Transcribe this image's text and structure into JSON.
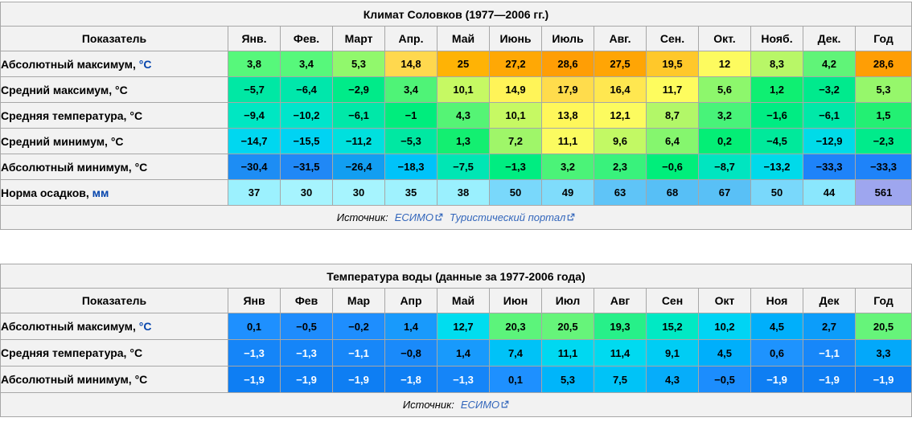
{
  "climate_table": {
    "title": "Климат Соловков (1977—2006 гг.)",
    "col_header_label": "Показатель",
    "months": [
      "Янв.",
      "Фев.",
      "Март",
      "Апр.",
      "Май",
      "Июнь",
      "Июль",
      "Авг.",
      "Сен.",
      "Окт.",
      "Нояб.",
      "Дек."
    ],
    "year_label": "Год",
    "rows": [
      {
        "label": "Абсолютный максимум,",
        "unit": "°C",
        "unit_is_link": true,
        "separator_top": true,
        "cells": [
          {
            "v": "3,8",
            "bg": "#57F87B"
          },
          {
            "v": "3,4",
            "bg": "#57F87B"
          },
          {
            "v": "5,3",
            "bg": "#91F86C"
          },
          {
            "v": "14,8",
            "bg": "#FFD84E"
          },
          {
            "v": "25",
            "bg": "#FFB305"
          },
          {
            "v": "27,2",
            "bg": "#FFA805"
          },
          {
            "v": "28,6",
            "bg": "#FF9E05"
          },
          {
            "v": "27,5",
            "bg": "#FFA505"
          },
          {
            "v": "19,5",
            "bg": "#FFC82A"
          },
          {
            "v": "12",
            "bg": "#FDFB5F"
          },
          {
            "v": "8,3",
            "bg": "#B8F767"
          },
          {
            "v": "4,2",
            "bg": "#60F478"
          }
        ],
        "year": {
          "v": "28,6",
          "bg": "#FF9E05"
        }
      },
      {
        "label": "Средний максимум,",
        "unit": "°C",
        "unit_is_link": false,
        "separator_top": false,
        "cells": [
          {
            "v": "−5,7",
            "bg": "#00E8A4"
          },
          {
            "v": "−6,4",
            "bg": "#00E7AB"
          },
          {
            "v": "−2,9",
            "bg": "#00EB89"
          },
          {
            "v": "3,4",
            "bg": "#4FF377"
          },
          {
            "v": "10,1",
            "bg": "#C6F963"
          },
          {
            "v": "14,9",
            "bg": "#FFF458"
          },
          {
            "v": "17,9",
            "bg": "#FFDC4C"
          },
          {
            "v": "16,4",
            "bg": "#FFE750"
          },
          {
            "v": "11,7",
            "bg": "#FEFC5E"
          },
          {
            "v": "5,6",
            "bg": "#8DF76C"
          },
          {
            "v": "1,2",
            "bg": "#0FEF72"
          },
          {
            "v": "−3,2",
            "bg": "#00EA8D"
          }
        ],
        "year": {
          "v": "5,3",
          "bg": "#96F76B"
        }
      },
      {
        "label": "Средняя температура,",
        "unit": "°C",
        "unit_is_link": false,
        "separator_top": false,
        "cells": [
          {
            "v": "−9,4",
            "bg": "#00E7C2"
          },
          {
            "v": "−10,2",
            "bg": "#00E5CB"
          },
          {
            "v": "−6,1",
            "bg": "#00E8A8"
          },
          {
            "v": "−1",
            "bg": "#00ED7D"
          },
          {
            "v": "4,3",
            "bg": "#55F475"
          },
          {
            "v": "10,1",
            "bg": "#C6F963"
          },
          {
            "v": "13,8",
            "bg": "#FFF75A"
          },
          {
            "v": "12,1",
            "bg": "#FCFB5F"
          },
          {
            "v": "8,7",
            "bg": "#B2F768"
          },
          {
            "v": "3,2",
            "bg": "#48F379"
          },
          {
            "v": "−1,6",
            "bg": "#00EC83"
          },
          {
            "v": "−6,1",
            "bg": "#00E8A8"
          }
        ],
        "year": {
          "v": "1,5",
          "bg": "#23F073"
        }
      },
      {
        "label": "Средний минимум,",
        "unit": "°C",
        "unit_is_link": false,
        "separator_top": false,
        "cells": [
          {
            "v": "−14,7",
            "bg": "#00D7F0"
          },
          {
            "v": "−15,5",
            "bg": "#00D3F3"
          },
          {
            "v": "−11,2",
            "bg": "#00E0DE"
          },
          {
            "v": "−5,3",
            "bg": "#00E8A2"
          },
          {
            "v": "1,3",
            "bg": "#13EF71"
          },
          {
            "v": "7,2",
            "bg": "#9FF669"
          },
          {
            "v": "11,1",
            "bg": "#FBFB60"
          },
          {
            "v": "9,6",
            "bg": "#C2F964"
          },
          {
            "v": "6,4",
            "bg": "#85F66E"
          },
          {
            "v": "0,2",
            "bg": "#04EE76"
          },
          {
            "v": "−4,5",
            "bg": "#00E99B"
          },
          {
            "v": "−12,9",
            "bg": "#00DBE8"
          }
        ],
        "year": {
          "v": "−2,3",
          "bg": "#00EB8B"
        }
      },
      {
        "label": "Абсолютный минимум,",
        "unit": "°C",
        "unit_is_link": false,
        "separator_top": false,
        "cells": [
          {
            "v": "−30,4",
            "bg": "#1D8DF4"
          },
          {
            "v": "−31,5",
            "bg": "#2088F6"
          },
          {
            "v": "−26,4",
            "bg": "#129EF1"
          },
          {
            "v": "−18,3",
            "bg": "#00C3F9"
          },
          {
            "v": "−7,5",
            "bg": "#00E6B4"
          },
          {
            "v": "−1,3",
            "bg": "#00ED81"
          },
          {
            "v": "3,2",
            "bg": "#4BF378"
          },
          {
            "v": "2,3",
            "bg": "#39F27C"
          },
          {
            "v": "−0,6",
            "bg": "#00EE7B"
          },
          {
            "v": "−8,7",
            "bg": "#00E5C0"
          },
          {
            "v": "−13,2",
            "bg": "#00DAEA"
          },
          {
            "v": "−33,3",
            "bg": "#1E83F9"
          }
        ],
        "year": {
          "v": "−33,3",
          "bg": "#1E83F9"
        }
      },
      {
        "label": "Норма осадков,",
        "unit": "мм",
        "unit_is_link": true,
        "separator_top": true,
        "cells": [
          {
            "v": "37",
            "bg": "#9CF1FE"
          },
          {
            "v": "30",
            "bg": "#A6F4FE"
          },
          {
            "v": "30",
            "bg": "#A6F4FE"
          },
          {
            "v": "35",
            "bg": "#9FF2FE"
          },
          {
            "v": "38",
            "bg": "#9AF0FE"
          },
          {
            "v": "50",
            "bg": "#79D8FB"
          },
          {
            "v": "49",
            "bg": "#7FDCFB"
          },
          {
            "v": "63",
            "bg": "#5FC4F7"
          },
          {
            "v": "68",
            "bg": "#57BFF6"
          },
          {
            "v": "67",
            "bg": "#59C0F6"
          },
          {
            "v": "50",
            "bg": "#79D8FB"
          },
          {
            "v": "44",
            "bg": "#8AE7FD"
          }
        ],
        "year": {
          "v": "561",
          "bg": "#9EA6EF"
        }
      }
    ],
    "source": {
      "prefix": "Источник:",
      "links": [
        "ЕСИМО",
        "Туристический портал"
      ]
    }
  },
  "water_table": {
    "title": "Температура воды (данные за 1977-2006 года)",
    "col_header_label": "Показатель",
    "months": [
      "Янв",
      "Фев",
      "Мар",
      "Апр",
      "Май",
      "Июн",
      "Июл",
      "Авг",
      "Сен",
      "Окт",
      "Ноя",
      "Дек"
    ],
    "year_label": "Год",
    "rows": [
      {
        "label": "Абсолютный максимум,",
        "unit": "°C",
        "unit_is_link": true,
        "separator_top": true,
        "cells": [
          {
            "v": "0,1",
            "bg": "#1E90FF"
          },
          {
            "v": "−0,5",
            "bg": "#1E8CFD"
          },
          {
            "v": "−0,2",
            "bg": "#1E8EFE"
          },
          {
            "v": "1,4",
            "bg": "#189AFC"
          },
          {
            "v": "12,7",
            "bg": "#00DDEF"
          },
          {
            "v": "20,3",
            "bg": "#5CF47B"
          },
          {
            "v": "20,5",
            "bg": "#66F47A"
          },
          {
            "v": "19,3",
            "bg": "#27F089"
          },
          {
            "v": "15,2",
            "bg": "#00E9C4"
          },
          {
            "v": "10,2",
            "bg": "#00D4F4"
          },
          {
            "v": "4,5",
            "bg": "#00AFFB"
          },
          {
            "v": "2,7",
            "bg": "#0C9DFA"
          }
        ],
        "year": {
          "v": "20,5",
          "bg": "#66F47A"
        }
      },
      {
        "label": "Средняя температура,",
        "unit": "°C",
        "unit_is_link": false,
        "separator_top": false,
        "cells": [
          {
            "v": "−1,3",
            "bg": "#1585F8",
            "fg": "#ffffff"
          },
          {
            "v": "−1,3",
            "bg": "#1585F8",
            "fg": "#ffffff"
          },
          {
            "v": "−1,1",
            "bg": "#1787F9",
            "fg": "#ffffff"
          },
          {
            "v": "−0,8",
            "bg": "#1A8AFA"
          },
          {
            "v": "1,4",
            "bg": "#189AFC"
          },
          {
            "v": "7,4",
            "bg": "#00C2F7"
          },
          {
            "v": "11,1",
            "bg": "#00D8F1"
          },
          {
            "v": "11,4",
            "bg": "#00DAF0"
          },
          {
            "v": "9,1",
            "bg": "#00CDF4"
          },
          {
            "v": "4,5",
            "bg": "#00AFFB"
          },
          {
            "v": "0,6",
            "bg": "#1E93FE"
          },
          {
            "v": "−1,1",
            "bg": "#1787F9",
            "fg": "#ffffff"
          }
        ],
        "year": {
          "v": "3,3",
          "bg": "#03A8FA"
        }
      },
      {
        "label": "Абсолютный минимум,",
        "unit": "°C",
        "unit_is_link": false,
        "separator_top": false,
        "cells": [
          {
            "v": "−1,9",
            "bg": "#0E7EF3",
            "fg": "#ffffff"
          },
          {
            "v": "−1,9",
            "bg": "#0E7EF3",
            "fg": "#ffffff"
          },
          {
            "v": "−1,9",
            "bg": "#0E7EF3",
            "fg": "#ffffff"
          },
          {
            "v": "−1,8",
            "bg": "#0F7FF4",
            "fg": "#ffffff"
          },
          {
            "v": "−1,3",
            "bg": "#1585F8",
            "fg": "#ffffff"
          },
          {
            "v": "0,1",
            "bg": "#1E90FF"
          },
          {
            "v": "5,3",
            "bg": "#00B5FA"
          },
          {
            "v": "7,5",
            "bg": "#00C3F7"
          },
          {
            "v": "4,3",
            "bg": "#06ADFA"
          },
          {
            "v": "−0,5",
            "bg": "#1C8DFD"
          },
          {
            "v": "−1,9",
            "bg": "#0E7EF3",
            "fg": "#ffffff"
          },
          {
            "v": "−1,9",
            "bg": "#0E7EF3",
            "fg": "#ffffff"
          }
        ],
        "year": {
          "v": "−1,9",
          "bg": "#0E7EF3",
          "fg": "#ffffff"
        }
      }
    ],
    "source": {
      "prefix": "Источник:",
      "links": [
        "ЕСИМО"
      ]
    }
  },
  "chart_data": [
    {
      "type": "table",
      "title": "Климат Соловков (1977—2006 гг.)",
      "categories": [
        "Янв.",
        "Фев.",
        "Март",
        "Апр.",
        "Май",
        "Июнь",
        "Июль",
        "Авг.",
        "Сен.",
        "Окт.",
        "Нояб.",
        "Дек.",
        "Год"
      ],
      "series": [
        {
          "name": "Абсолютный максимум, °C",
          "values": [
            3.8,
            3.4,
            5.3,
            14.8,
            25,
            27.2,
            28.6,
            27.5,
            19.5,
            12,
            8.3,
            4.2,
            28.6
          ]
        },
        {
          "name": "Средний максимум, °C",
          "values": [
            -5.7,
            -6.4,
            -2.9,
            3.4,
            10.1,
            14.9,
            17.9,
            16.4,
            11.7,
            5.6,
            1.2,
            -3.2,
            5.3
          ]
        },
        {
          "name": "Средняя температура, °C",
          "values": [
            -9.4,
            -10.2,
            -6.1,
            -1,
            4.3,
            10.1,
            13.8,
            12.1,
            8.7,
            3.2,
            -1.6,
            -6.1,
            1.5
          ]
        },
        {
          "name": "Средний минимум, °C",
          "values": [
            -14.7,
            -15.5,
            -11.2,
            -5.3,
            1.3,
            7.2,
            11.1,
            9.6,
            6.4,
            0.2,
            -4.5,
            -12.9,
            -2.3
          ]
        },
        {
          "name": "Абсолютный минимум, °C",
          "values": [
            -30.4,
            -31.5,
            -26.4,
            -18.3,
            -7.5,
            -1.3,
            3.2,
            2.3,
            -0.6,
            -8.7,
            -13.2,
            -33.3,
            -33.3
          ]
        },
        {
          "name": "Норма осадков, мм",
          "values": [
            37,
            30,
            30,
            35,
            38,
            50,
            49,
            63,
            68,
            67,
            50,
            44,
            561
          ]
        }
      ],
      "source": "Источник: ЕСИМО, Туристический портал"
    },
    {
      "type": "table",
      "title": "Температура воды (данные за 1977-2006 года)",
      "categories": [
        "Янв",
        "Фев",
        "Мар",
        "Апр",
        "Май",
        "Июн",
        "Июл",
        "Авг",
        "Сен",
        "Окт",
        "Ноя",
        "Дек",
        "Год"
      ],
      "series": [
        {
          "name": "Абсолютный максимум, °C",
          "values": [
            0.1,
            -0.5,
            -0.2,
            1.4,
            12.7,
            20.3,
            20.5,
            19.3,
            15.2,
            10.2,
            4.5,
            2.7,
            20.5
          ]
        },
        {
          "name": "Средняя температура, °C",
          "values": [
            -1.3,
            -1.3,
            -1.1,
            -0.8,
            1.4,
            7.4,
            11.1,
            11.4,
            9.1,
            4.5,
            0.6,
            -1.1,
            3.3
          ]
        },
        {
          "name": "Абсолютный минимум, °C",
          "values": [
            -1.9,
            -1.9,
            -1.9,
            -1.8,
            -1.3,
            0.1,
            5.3,
            7.5,
            4.3,
            -0.5,
            -1.9,
            -1.9,
            -1.9
          ]
        }
      ],
      "source": "Источник: ЕСИМО"
    }
  ]
}
